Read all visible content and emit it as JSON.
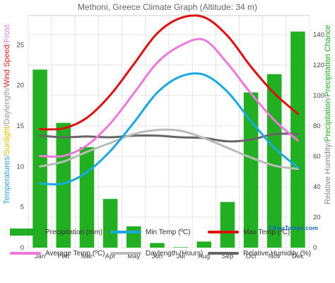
{
  "chart_data": {
    "type": "bar+line",
    "title": "Methoni, Greece Climate Graph (Altitude: 34 m)",
    "categories": [
      "Jan",
      "Feb",
      "Mar",
      "Apr",
      "May",
      "Jun",
      "Jul",
      "Aug",
      "Sep",
      "Oct",
      "Nov",
      "Dec"
    ],
    "left_axis": {
      "ylim": [
        0,
        28.6
      ],
      "ticks": [
        0,
        5,
        10,
        15,
        20,
        25
      ],
      "label_parts": [
        {
          "text": "Temperatures",
          "color": "#29a0e0"
        },
        {
          "text": "/",
          "color": "#999999"
        },
        {
          "text": "Sunlight",
          "color": "#e8c000"
        },
        {
          "text": "/",
          "color": "#999999"
        },
        {
          "text": "Daylength",
          "color": "#999999"
        },
        {
          "text": "/",
          "color": "#999999"
        },
        {
          "text": "Wind Speed",
          "color": "#e02020"
        },
        {
          "text": "/",
          "color": "#999999"
        },
        {
          "text": "Frost",
          "color": "#e878e0"
        }
      ]
    },
    "right_axis": {
      "ylim": [
        0,
        152.5
      ],
      "ticks": [
        0,
        20,
        40,
        60,
        80,
        100,
        120,
        140
      ],
      "label_parts": [
        {
          "text": "Relative Humidity",
          "color": "#888888"
        },
        {
          "text": "/",
          "color": "#999999"
        },
        {
          "text": "Precipitation",
          "color": "#22aa22"
        },
        {
          "text": "/",
          "color": "#999999"
        },
        {
          "text": "Precipitation Chance",
          "color": "#22aa22"
        }
      ]
    },
    "series": [
      {
        "name": "Precipitation (mm)",
        "kind": "bar",
        "axis": "right",
        "color": "#22b022",
        "values": [
          117,
          82,
          66,
          32,
          14,
          3,
          0.3,
          4,
          30,
          102,
          114,
          142
        ]
      },
      {
        "name": "Min Temp (ºC)",
        "kind": "line",
        "axis": "left",
        "color": "#19a9e0",
        "values": [
          7.9,
          7.9,
          9.3,
          11.9,
          15.4,
          19.1,
          21.1,
          21.3,
          19.2,
          15.6,
          12.3,
          9.9
        ]
      },
      {
        "name": "Max Temp (ºC)",
        "kind": "line",
        "axis": "left",
        "color": "#dd1111",
        "values": [
          14.6,
          14.7,
          16.0,
          18.8,
          22.6,
          26.4,
          28.3,
          28.4,
          26.1,
          22.3,
          19.0,
          16.5
        ]
      },
      {
        "name": "Average Temp (ºC)",
        "kind": "line",
        "axis": "left",
        "color": "#ee77dd",
        "values": [
          11.3,
          11.3,
          12.6,
          15.3,
          19.0,
          22.8,
          24.9,
          25.6,
          22.7,
          19.0,
          15.7,
          13.2
        ]
      },
      {
        "name": "Daylength (Hours)",
        "kind": "line",
        "axis": "left",
        "color": "#bbbbbb",
        "values": [
          10.0,
          10.6,
          11.8,
          12.9,
          14.0,
          14.5,
          14.4,
          13.5,
          12.3,
          11.1,
          10.1,
          9.7
        ]
      },
      {
        "name": "Relative Humidity (%)",
        "kind": "line",
        "axis": "left",
        "color": "#666666",
        "values": [
          13.8,
          13.6,
          13.7,
          13.6,
          13.8,
          13.8,
          13.6,
          13.5,
          13.1,
          13.3,
          14.0,
          14.0
        ]
      }
    ],
    "grid": true,
    "legend_position": "bottom"
  },
  "legend": {
    "items": [
      {
        "label": "Precipitation (mm)",
        "type": "box",
        "color": "#22b022"
      },
      {
        "label": "Min Temp (ºC)",
        "type": "line",
        "color": "#19a9e0"
      },
      {
        "label": "Max Temp (ºC)",
        "type": "line",
        "color": "#dd1111"
      },
      {
        "label": "Average Temp (ºC)",
        "type": "line",
        "color": "#ee77dd"
      },
      {
        "label": "Daylength (Hours)",
        "type": "line",
        "color": "#bbbbbb"
      },
      {
        "label": "Relative Humidity (%)",
        "type": "line",
        "color": "#666666"
      }
    ],
    "brand": "ClimaTemps.com"
  }
}
